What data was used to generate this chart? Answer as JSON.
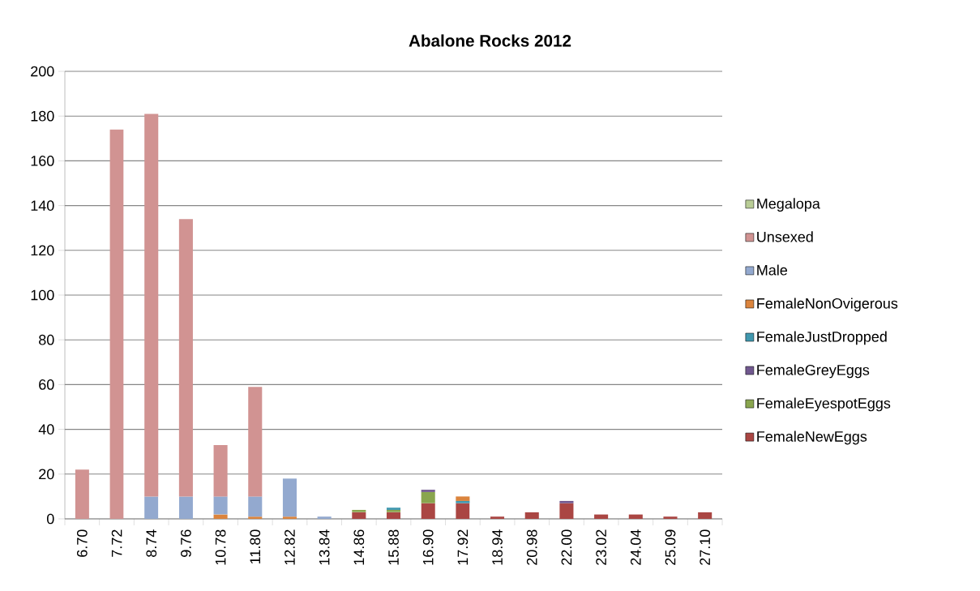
{
  "chart_data": {
    "type": "bar",
    "stacked": true,
    "title": "Abalone Rocks 2012",
    "categories": [
      "6.70",
      "7.72",
      "8.74",
      "9.76",
      "10.78",
      "11.80",
      "12.82",
      "13.84",
      "14.86",
      "15.88",
      "16.90",
      "17.92",
      "18.94",
      "20.98",
      "22.00",
      "23.02",
      "24.04",
      "25.09",
      "27.10"
    ],
    "series": [
      {
        "name": "FemaleNewEggs",
        "color": "#aa4643",
        "values": [
          null,
          null,
          null,
          null,
          null,
          null,
          null,
          null,
          3,
          3,
          7,
          7,
          1,
          3,
          7,
          2,
          2,
          1,
          3
        ]
      },
      {
        "name": "FemaleEyespotEggs",
        "color": "#89a54e",
        "values": [
          null,
          null,
          null,
          null,
          null,
          null,
          null,
          null,
          1,
          1,
          5,
          null,
          null,
          null,
          null,
          null,
          null,
          null,
          null
        ]
      },
      {
        "name": "FemaleGreyEggs",
        "color": "#71588f",
        "values": [
          null,
          null,
          null,
          null,
          null,
          null,
          null,
          null,
          null,
          null,
          1,
          null,
          null,
          null,
          1,
          null,
          null,
          null,
          null
        ]
      },
      {
        "name": "FemaleJustDropped",
        "color": "#4198af",
        "values": [
          null,
          null,
          null,
          null,
          null,
          null,
          null,
          null,
          null,
          1,
          null,
          1,
          null,
          null,
          null,
          null,
          null,
          null,
          null
        ]
      },
      {
        "name": "FemaleNonOvigerous",
        "color": "#db843d",
        "values": [
          null,
          null,
          null,
          null,
          2,
          1,
          1,
          null,
          null,
          null,
          null,
          2,
          null,
          null,
          null,
          null,
          null,
          null,
          null
        ]
      },
      {
        "name": "Male",
        "color": "#93a9cf",
        "values": [
          null,
          null,
          10,
          10,
          8,
          9,
          17,
          1,
          null,
          null,
          null,
          null,
          null,
          null,
          null,
          null,
          null,
          null,
          null
        ]
      },
      {
        "name": "Unsexed",
        "color": "#d19392",
        "values": [
          22,
          174,
          171,
          124,
          23,
          49,
          null,
          null,
          null,
          null,
          null,
          null,
          null,
          null,
          null,
          null,
          null,
          null,
          null
        ]
      },
      {
        "name": "Megalopa",
        "color": "#b9cd96",
        "values": [
          null,
          null,
          null,
          null,
          null,
          null,
          null,
          null,
          null,
          null,
          null,
          null,
          null,
          null,
          null,
          null,
          null,
          null,
          null
        ]
      }
    ],
    "ylim": [
      0,
      200
    ],
    "yticks": [
      0,
      20,
      40,
      60,
      80,
      100,
      120,
      140,
      160,
      180,
      200
    ],
    "grid": "y",
    "legend": "right"
  }
}
